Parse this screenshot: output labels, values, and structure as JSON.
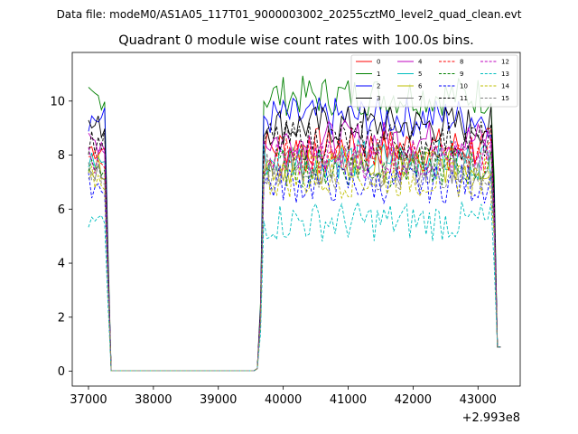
{
  "chart_data": {
    "type": "line",
    "suptitle": "Data file: modeM0/AS1A05_117T01_9000003002_20255cztM0_level2_quad_clean.evt",
    "title": "Quadrant 0 module wise count rates with 100.0s bins.",
    "xlabel": "",
    "ylabel": "",
    "x_offset_label": "+2.993e8",
    "xlim": [
      36750,
      43650
    ],
    "ylim": [
      -0.55,
      11.8
    ],
    "x_ticks": [
      37000,
      38000,
      39000,
      40000,
      41000,
      42000,
      43000
    ],
    "y_ticks": [
      0,
      2,
      4,
      6,
      8,
      10
    ],
    "grid": false,
    "legend_position": "top-right",
    "legend_columns": 4,
    "x_start": 37000,
    "x_step": 50,
    "series": [
      {
        "name": "0",
        "color": "#ff0000",
        "dash": "solid",
        "base": 8.35
      },
      {
        "name": "1",
        "color": "#008000",
        "dash": "solid",
        "base": 10.25
      },
      {
        "name": "2",
        "color": "#0000ff",
        "dash": "solid",
        "base": 9.45
      },
      {
        "name": "3",
        "color": "#000000",
        "dash": "solid",
        "base": 9.15
      },
      {
        "name": "4",
        "color": "#bf00bf",
        "dash": "solid",
        "base": 8.6
      },
      {
        "name": "5",
        "color": "#00bfbf",
        "dash": "solid",
        "base": 7.9
      },
      {
        "name": "6",
        "color": "#bfbf00",
        "dash": "solid",
        "base": 7.7
      },
      {
        "name": "7",
        "color": "#808080",
        "dash": "solid",
        "base": 7.6
      },
      {
        "name": "8",
        "color": "#ff0000",
        "dash": "dashed",
        "base": 8.0
      },
      {
        "name": "9",
        "color": "#008000",
        "dash": "dashed",
        "base": 7.6
      },
      {
        "name": "10",
        "color": "#0000ff",
        "dash": "dashed",
        "base": 7.0
      },
      {
        "name": "11",
        "color": "#000000",
        "dash": "dashed",
        "base": 8.6
      },
      {
        "name": "12",
        "color": "#bf00bf",
        "dash": "dashed",
        "base": 7.9
      },
      {
        "name": "13",
        "color": "#00bfbf",
        "dash": "dashed",
        "base": 5.6
      },
      {
        "name": "14",
        "color": "#bfbf00",
        "dash": "dashed",
        "base": 7.2
      },
      {
        "name": "15",
        "color": "#808080",
        "dash": "dashed",
        "base": 7.5
      }
    ]
  }
}
